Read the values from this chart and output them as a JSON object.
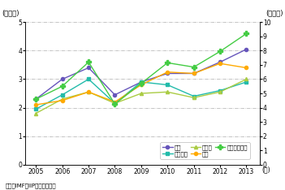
{
  "years": [
    2005,
    2006,
    2007,
    2008,
    2009,
    2010,
    2011,
    2012,
    2013
  ],
  "uk": [
    2.3,
    3.0,
    3.4,
    2.45,
    2.9,
    3.2,
    3.2,
    3.6,
    4.05
  ],
  "france": [
    1.95,
    2.45,
    3.0,
    2.15,
    2.9,
    2.8,
    2.4,
    2.6,
    2.9
  ],
  "germany": [
    1.8,
    2.3,
    2.55,
    2.15,
    2.5,
    2.55,
    2.35,
    2.55,
    3.0
  ],
  "japan": [
    2.1,
    2.25,
    2.55,
    2.2,
    2.8,
    3.25,
    3.2,
    3.55,
    3.4
  ],
  "usa": [
    4.6,
    5.5,
    7.2,
    4.25,
    5.7,
    7.15,
    6.85,
    7.95,
    9.2
  ],
  "uk_color": "#6655bb",
  "france_color": "#22bbaa",
  "germany_color": "#aacc44",
  "japan_color": "#ffaa00",
  "usa_color": "#44cc44",
  "left_ylim": [
    0,
    5
  ],
  "left_yticks": [
    0,
    1,
    2,
    3,
    4,
    5
  ],
  "right_ylim": [
    0,
    10
  ],
  "right_yticks": [
    0,
    1,
    2,
    3,
    4,
    5,
    6,
    7,
    8,
    9,
    10
  ],
  "left_ylabel": "(兆ドル)",
  "right_ylabel": "(兆ドル)",
  "xlabel_year": "(年)",
  "legend_uk": "英国",
  "legend_france": "フランス",
  "legend_germany": "ドイツ",
  "legend_japan": "日本",
  "legend_usa": "米国（右軸）",
  "source": "資料：IMF『IIP』から作成。",
  "grid_color": "#999999",
  "grid_style": "-.",
  "bg_color": "#ffffff"
}
